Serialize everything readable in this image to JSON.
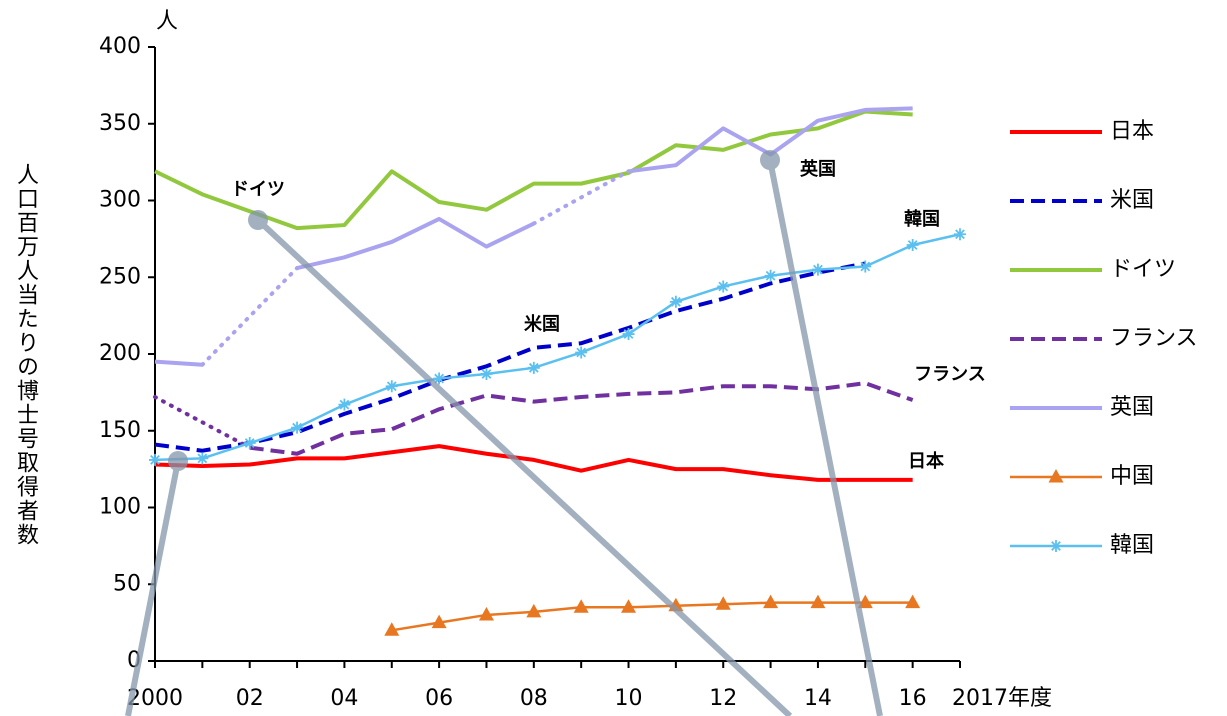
{
  "chart_data": {
    "type": "line",
    "y_label": "人口百万人当たりの博士号取得者数",
    "y_unit": "人",
    "categories": [
      "2000",
      null,
      "02",
      null,
      "04",
      null,
      "06",
      null,
      "08",
      null,
      "10",
      null,
      "12",
      null,
      "14",
      null,
      "16",
      "2017年度"
    ],
    "ylim": [
      0,
      400
    ],
    "yticks": [
      0,
      50,
      100,
      150,
      200,
      250,
      300,
      350,
      400
    ],
    "grid": false,
    "legend": "right",
    "series": [
      {
        "name": "日本",
        "color": "#ff0000",
        "line_style": "solid",
        "values": [
          128,
          127,
          128,
          132,
          132,
          136,
          140,
          135,
          131,
          124,
          131,
          125,
          125,
          121,
          118,
          118,
          118,
          null
        ]
      },
      {
        "name": "米国",
        "color": "#0000cc",
        "line_style": "dashed",
        "values": [
          141,
          137,
          142,
          149,
          161,
          171,
          183,
          192,
          204,
          207,
          217,
          228,
          236,
          246,
          253,
          259,
          null,
          null
        ]
      },
      {
        "name": "ドイツ",
        "color": "#92c83e",
        "line_style": "solid",
        "values": [
          319,
          304,
          293,
          282,
          284,
          319,
          299,
          294,
          311,
          311,
          318,
          336,
          333,
          343,
          347,
          358,
          356,
          null
        ]
      },
      {
        "name": "フランス",
        "color": "#7030a0",
        "line_style": "dashed",
        "gaps": "dotted",
        "values": [
          172,
          null,
          139,
          135,
          148,
          151,
          164,
          173,
          169,
          172,
          174,
          175,
          179,
          179,
          177,
          181,
          170,
          null
        ]
      },
      {
        "name": "英国",
        "color": "#aaa3f0",
        "line_style": "solid",
        "gaps": "dotted",
        "values": [
          195,
          193,
          null,
          256,
          263,
          273,
          288,
          270,
          285,
          null,
          319,
          323,
          347,
          330,
          352,
          359,
          360,
          null
        ]
      },
      {
        "name": "中国",
        "color": "#e87722",
        "line_style": "solid",
        "marker": "triangle",
        "values": [
          null,
          null,
          null,
          null,
          null,
          20,
          25,
          30,
          32,
          35,
          35,
          36,
          37,
          38,
          38,
          38,
          38,
          null
        ]
      },
      {
        "name": "韓国",
        "color": "#5bc0f0",
        "line_style": "solid",
        "marker": "asterisk",
        "values": [
          131,
          132,
          142,
          152,
          167,
          179,
          184,
          187,
          191,
          201,
          213,
          234,
          244,
          251,
          255,
          257,
          271,
          278
        ]
      }
    ],
    "annotations": [
      "ドイツ",
      "英国",
      "米国",
      "韓国",
      "フランス",
      "日本"
    ]
  }
}
